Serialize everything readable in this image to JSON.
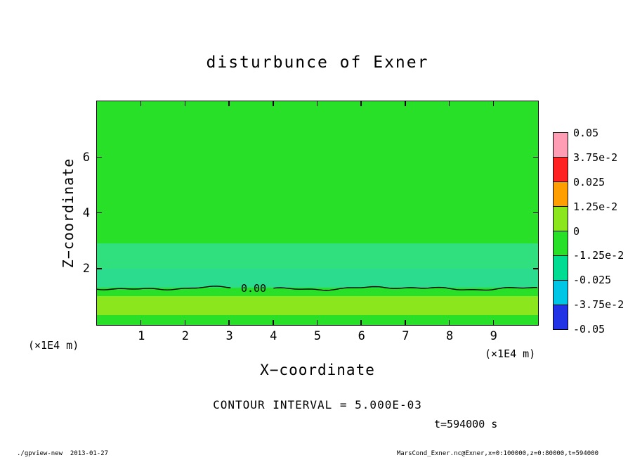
{
  "title": "disturbunce of Exner",
  "xlabel": "X−coordinate",
  "ylabel": "Z−coordinate",
  "axis_unit": "(×1E4 m)",
  "contour_note": "CONTOUR INTERVAL = 5.000E-03",
  "time_label": "t=594000 s",
  "contour_label": "0.00",
  "footer_left": "./gpview-new  2013-01-27",
  "footer_right": "MarsCond_Exner.nc@Exner,x=0:100000,z=0:80000,t=594000",
  "chart_data": {
    "type": "heatmap",
    "title": "disturbunce of Exner",
    "xlabel": "X-coordinate",
    "ylabel": "Z-coordinate",
    "axis_unit": "x1E4 m",
    "xlim": [
      0,
      10
    ],
    "ylim": [
      0,
      8
    ],
    "x_ticks": [
      1,
      2,
      3,
      4,
      5,
      6,
      7,
      8,
      9
    ],
    "y_ticks": [
      2,
      4,
      6
    ],
    "contour_interval": "5.000E-03",
    "time": "t=594000 s",
    "zero_contour_z": 1.31,
    "zero_contour_label": "0.00",
    "colorbar_labels": [
      "0.05",
      "3.75e-2",
      "0.025",
      "1.25e-2",
      "0",
      "-1.25e-2",
      "-0.025",
      "-3.75e-2",
      "-0.05"
    ],
    "colorbar_colors": [
      "#ff9db4",
      "#ff2222",
      "#ff9e00",
      "#8ce61e",
      "#29e029",
      "#00dc92",
      "#00c6e6",
      "#2233e6"
    ],
    "bands": [
      {
        "z_from": 2.9,
        "z_to": 8.0,
        "color": "#29e029"
      },
      {
        "z_from": 2.0,
        "z_to": 2.9,
        "color": "#30df7e"
      },
      {
        "z_from": 1.31,
        "z_to": 2.0,
        "color": "#2cdc8e"
      },
      {
        "z_from": 1.02,
        "z_to": 1.31,
        "color": "#29e029"
      },
      {
        "z_from": 0.34,
        "z_to": 1.02,
        "color": "#8ce61e"
      },
      {
        "z_from": 0.0,
        "z_to": 0.34,
        "color": "#29e029"
      }
    ]
  }
}
